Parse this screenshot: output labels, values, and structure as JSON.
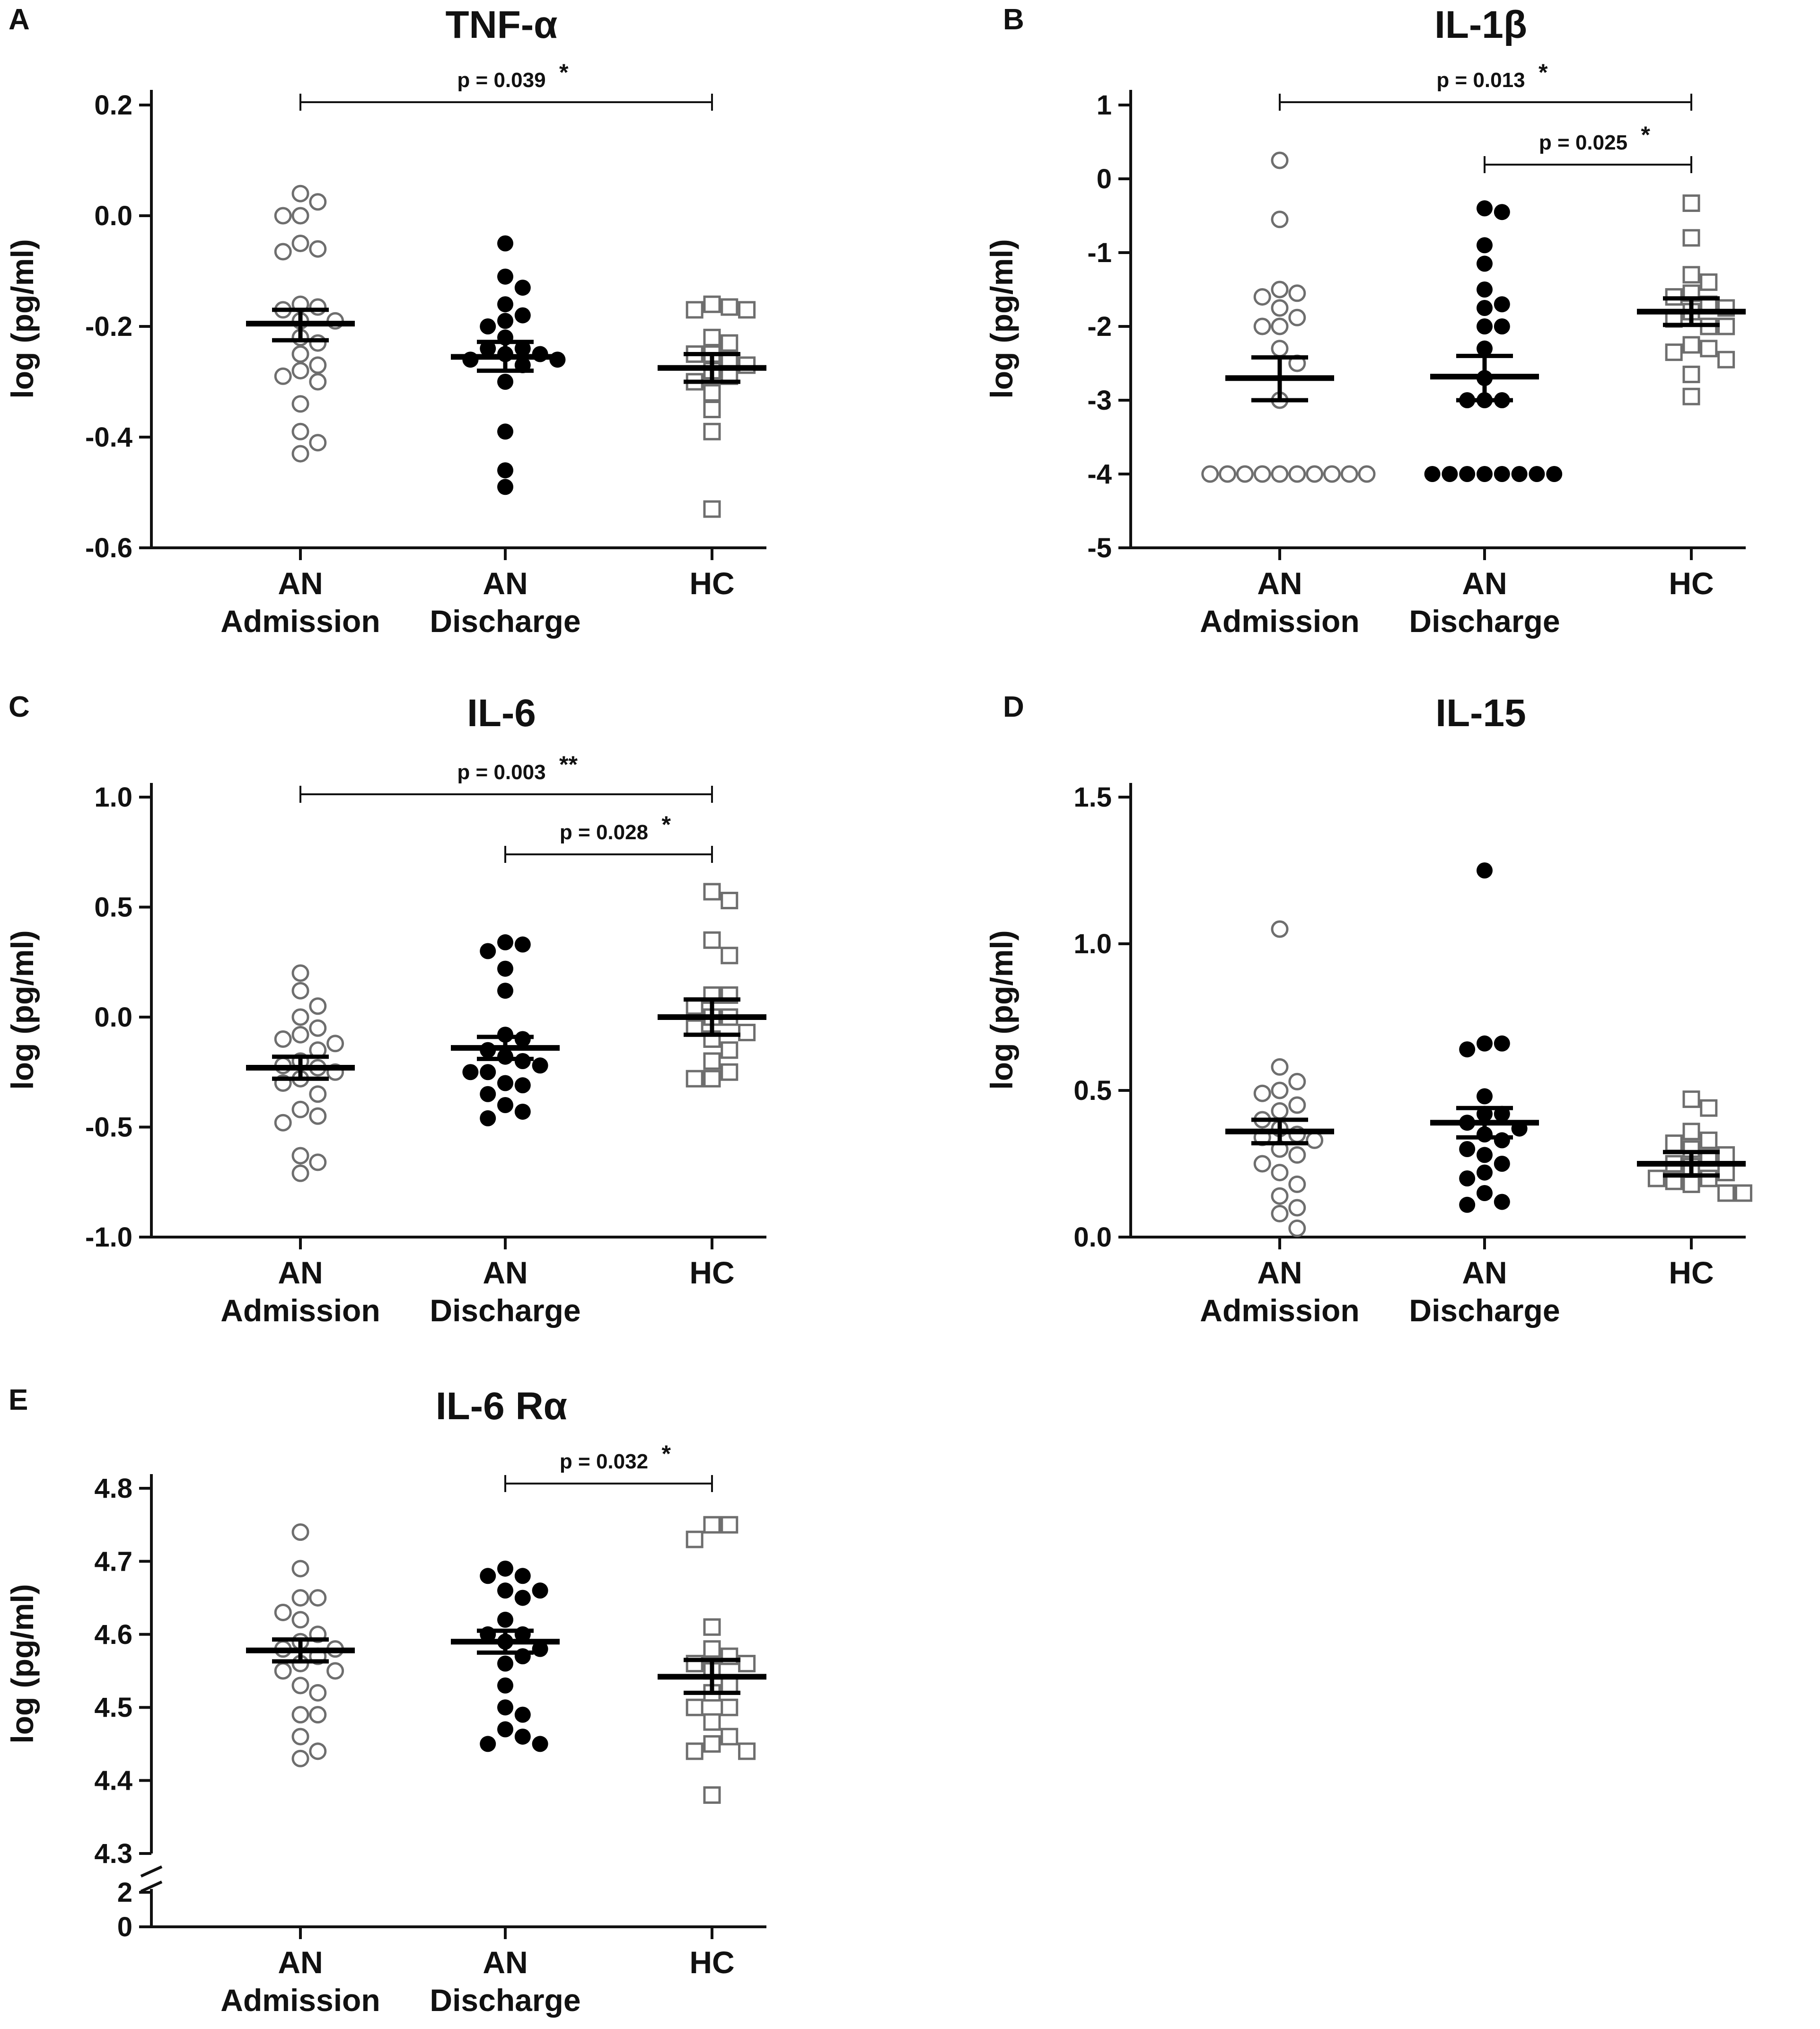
{
  "figure": {
    "categories": [
      [
        "AN",
        "Admission"
      ],
      [
        "AN",
        "Discharge"
      ],
      [
        "HC",
        ""
      ]
    ],
    "y_label": "log (pg/ml)",
    "colors": {
      "axis": "#111111",
      "open_marker": "#6e6e6e",
      "filled_marker": "#000000",
      "bar": "#000000"
    }
  },
  "chart_data": [
    {
      "type": "scatter",
      "letter": "A",
      "title": "TNF-α",
      "ylabel": "log (pg/ml)",
      "ylim": [
        -0.6,
        0.2
      ],
      "ticks": [
        -0.6,
        -0.4,
        -0.2,
        0.0,
        0.2
      ],
      "tick_labels": [
        "-0.6",
        "-0.4",
        "-0.2",
        "0.0",
        "0.2"
      ],
      "groups": [
        {
          "name": "AN Admission",
          "marker": "open-circle",
          "mean": -0.195,
          "sem_low": -0.225,
          "sem_high": -0.17,
          "values": [
            0.04,
            0.025,
            0.0,
            0.0,
            -0.05,
            -0.06,
            -0.065,
            -0.16,
            -0.165,
            -0.17,
            -0.19,
            -0.19,
            -0.22,
            -0.23,
            -0.25,
            -0.27,
            -0.28,
            -0.29,
            -0.3,
            -0.34,
            -0.39,
            -0.41,
            -0.43
          ]
        },
        {
          "name": "AN Discharge",
          "marker": "filled-circle",
          "mean": -0.255,
          "sem_low": -0.28,
          "sem_high": -0.228,
          "values": [
            -0.05,
            -0.11,
            -0.13,
            -0.16,
            -0.18,
            -0.19,
            -0.2,
            -0.22,
            -0.24,
            -0.24,
            -0.25,
            -0.25,
            -0.26,
            -0.26,
            -0.27,
            -0.3,
            -0.39,
            -0.46,
            -0.49
          ]
        },
        {
          "name": "HC",
          "marker": "open-square",
          "mean": -0.275,
          "sem_low": -0.3,
          "sem_high": -0.25,
          "values": [
            -0.16,
            -0.165,
            -0.17,
            -0.17,
            -0.22,
            -0.23,
            -0.25,
            -0.25,
            -0.26,
            -0.27,
            -0.28,
            -0.29,
            -0.3,
            -0.32,
            -0.35,
            -0.39,
            -0.53
          ]
        }
      ],
      "brackets": [
        {
          "from": 0,
          "to": 2,
          "level": 0.2,
          "label": "p = 0.039",
          "stars": "*"
        }
      ]
    },
    {
      "type": "scatter",
      "letter": "B",
      "title": "IL-1β",
      "ylabel": "log (pg/ml)",
      "ylim": [
        -5,
        1
      ],
      "ticks": [
        -5,
        -4,
        -3,
        -2,
        -1,
        0,
        1
      ],
      "tick_labels": [
        "-5",
        "-4",
        "-3",
        "-2",
        "-1",
        "0",
        "1"
      ],
      "groups": [
        {
          "name": "AN Admission",
          "marker": "open-circle",
          "mean": -2.7,
          "sem_low": -3.0,
          "sem_high": -2.42,
          "values": [
            0.25,
            -0.55,
            -1.5,
            -1.55,
            -1.6,
            -1.75,
            -1.88,
            -2.0,
            -2.0,
            -2.3,
            -2.5,
            -3.0,
            -4,
            -4,
            -4,
            -4,
            -4,
            -4,
            -4,
            -4,
            -4,
            -4
          ]
        },
        {
          "name": "AN Discharge",
          "marker": "filled-circle",
          "mean": -2.68,
          "sem_low": -3.0,
          "sem_high": -2.4,
          "values": [
            -0.4,
            -0.45,
            -0.9,
            -1.15,
            -1.5,
            -1.7,
            -1.75,
            -2.0,
            -2.0,
            -2.3,
            -2.7,
            -3.0,
            -3.0,
            -3.0,
            -4,
            -4,
            -4,
            -4,
            -4,
            -4,
            -4,
            -4
          ]
        },
        {
          "name": "HC",
          "marker": "open-square",
          "mean": -1.8,
          "sem_low": -1.98,
          "sem_high": -1.62,
          "values": [
            -0.33,
            -0.8,
            -1.3,
            -1.4,
            -1.55,
            -1.6,
            -1.7,
            -1.75,
            -1.8,
            -1.9,
            -2.0,
            -2.0,
            -2.25,
            -2.3,
            -2.35,
            -2.45,
            -2.65,
            -2.95
          ]
        }
      ],
      "brackets": [
        {
          "from": 0,
          "to": 2,
          "level": 1.0,
          "label": "p = 0.013",
          "stars": "*"
        },
        {
          "from": 1,
          "to": 2,
          "level": 0.22,
          "label": "p = 0.025",
          "stars": "*"
        }
      ]
    },
    {
      "type": "scatter",
      "letter": "C",
      "title": "IL-6",
      "ylabel": "log (pg/ml)",
      "ylim": [
        -1.0,
        1.0
      ],
      "ticks": [
        -1.0,
        -0.5,
        0.0,
        0.5,
        1.0
      ],
      "tick_labels": [
        "-1.0",
        "-0.5",
        "0.0",
        "0.5",
        "1.0"
      ],
      "groups": [
        {
          "name": "AN Admission",
          "marker": "open-circle",
          "mean": -0.23,
          "sem_low": -0.28,
          "sem_high": -0.18,
          "values": [
            0.2,
            0.12,
            0.05,
            0.0,
            -0.05,
            -0.08,
            -0.1,
            -0.12,
            -0.15,
            -0.2,
            -0.22,
            -0.23,
            -0.25,
            -0.28,
            -0.3,
            -0.35,
            -0.42,
            -0.45,
            -0.48,
            -0.63,
            -0.66,
            -0.71
          ]
        },
        {
          "name": "AN Discharge",
          "marker": "filled-circle",
          "mean": -0.14,
          "sem_low": -0.19,
          "sem_high": -0.09,
          "values": [
            0.34,
            0.33,
            0.3,
            0.22,
            0.12,
            -0.08,
            -0.1,
            -0.15,
            -0.18,
            -0.2,
            -0.22,
            -0.25,
            -0.25,
            -0.3,
            -0.31,
            -0.35,
            -0.4,
            -0.43,
            -0.46
          ]
        },
        {
          "name": "HC",
          "marker": "open-square",
          "mean": 0.0,
          "sem_low": -0.08,
          "sem_high": 0.08,
          "values": [
            0.57,
            0.53,
            0.35,
            0.28,
            0.1,
            0.1,
            0.05,
            0.0,
            0.0,
            -0.05,
            -0.07,
            -0.1,
            -0.15,
            -0.2,
            -0.25,
            -0.28,
            -0.28
          ]
        }
      ],
      "brackets": [
        {
          "from": 0,
          "to": 2,
          "level": 1.0,
          "label": "p = 0.003",
          "stars": "**"
        },
        {
          "from": 1,
          "to": 2,
          "level": 0.73,
          "label": "p = 0.028",
          "stars": "*"
        }
      ]
    },
    {
      "type": "scatter",
      "letter": "D",
      "title": "IL-15",
      "ylabel": "log (pg/ml)",
      "ylim": [
        0.0,
        1.5
      ],
      "ticks": [
        0.0,
        0.5,
        1.0,
        1.5
      ],
      "tick_labels": [
        "0.0",
        "0.5",
        "1.0",
        "1.5"
      ],
      "groups": [
        {
          "name": "AN Admission",
          "marker": "open-circle",
          "mean": 0.36,
          "sem_low": 0.32,
          "sem_high": 0.4,
          "values": [
            1.05,
            0.58,
            0.53,
            0.5,
            0.49,
            0.45,
            0.43,
            0.4,
            0.37,
            0.35,
            0.34,
            0.33,
            0.3,
            0.28,
            0.25,
            0.22,
            0.18,
            0.14,
            0.1,
            0.08,
            0.03
          ]
        },
        {
          "name": "AN Discharge",
          "marker": "filled-circle",
          "mean": 0.39,
          "sem_low": 0.34,
          "sem_high": 0.44,
          "values": [
            1.25,
            0.66,
            0.66,
            0.64,
            0.48,
            0.42,
            0.42,
            0.39,
            0.37,
            0.35,
            0.33,
            0.3,
            0.28,
            0.25,
            0.22,
            0.2,
            0.15,
            0.12,
            0.11
          ]
        },
        {
          "name": "HC",
          "marker": "open-square",
          "mean": 0.25,
          "sem_low": 0.21,
          "sem_high": 0.29,
          "values": [
            0.47,
            0.44,
            0.36,
            0.33,
            0.32,
            0.3,
            0.28,
            0.27,
            0.25,
            0.24,
            0.22,
            0.2,
            0.2,
            0.19,
            0.18,
            0.15,
            0.15
          ]
        }
      ],
      "brackets": []
    },
    {
      "type": "scatter",
      "letter": "E",
      "title": "IL-6 Rα",
      "ylabel": "log (pg/ml)",
      "ylim": [
        4.3,
        4.8
      ],
      "ticks": [
        4.3,
        4.4,
        4.5,
        4.6,
        4.7,
        4.8
      ],
      "tick_labels": [
        "4.3",
        "4.4",
        "4.5",
        "4.6",
        "4.7",
        "4.8"
      ],
      "broken_axis_ticks": [
        "2",
        "0"
      ],
      "groups": [
        {
          "name": "AN Admission",
          "marker": "open-circle",
          "mean": 4.578,
          "sem_low": 4.563,
          "sem_high": 4.593,
          "values": [
            4.74,
            4.69,
            4.65,
            4.65,
            4.63,
            4.62,
            4.6,
            4.59,
            4.58,
            4.58,
            4.57,
            4.56,
            4.55,
            4.55,
            4.53,
            4.52,
            4.49,
            4.49,
            4.46,
            4.44,
            4.43
          ]
        },
        {
          "name": "AN Discharge",
          "marker": "filled-circle",
          "mean": 4.59,
          "sem_low": 4.575,
          "sem_high": 4.605,
          "values": [
            4.69,
            4.68,
            4.68,
            4.66,
            4.66,
            4.65,
            4.62,
            4.6,
            4.6,
            4.59,
            4.58,
            4.57,
            4.56,
            4.53,
            4.5,
            4.49,
            4.47,
            4.46,
            4.45,
            4.45
          ]
        },
        {
          "name": "HC",
          "marker": "open-square",
          "mean": 4.542,
          "sem_low": 4.52,
          "sem_high": 4.565,
          "values": [
            4.75,
            4.75,
            4.73,
            4.61,
            4.58,
            4.57,
            4.56,
            4.56,
            4.55,
            4.53,
            4.52,
            4.5,
            4.5,
            4.48,
            4.46,
            4.45,
            4.44,
            4.44,
            4.38
          ]
        }
      ],
      "brackets": [
        {
          "from": 1,
          "to": 2,
          "level": 4.8,
          "label": "p = 0.032",
          "stars": "*"
        }
      ]
    }
  ]
}
